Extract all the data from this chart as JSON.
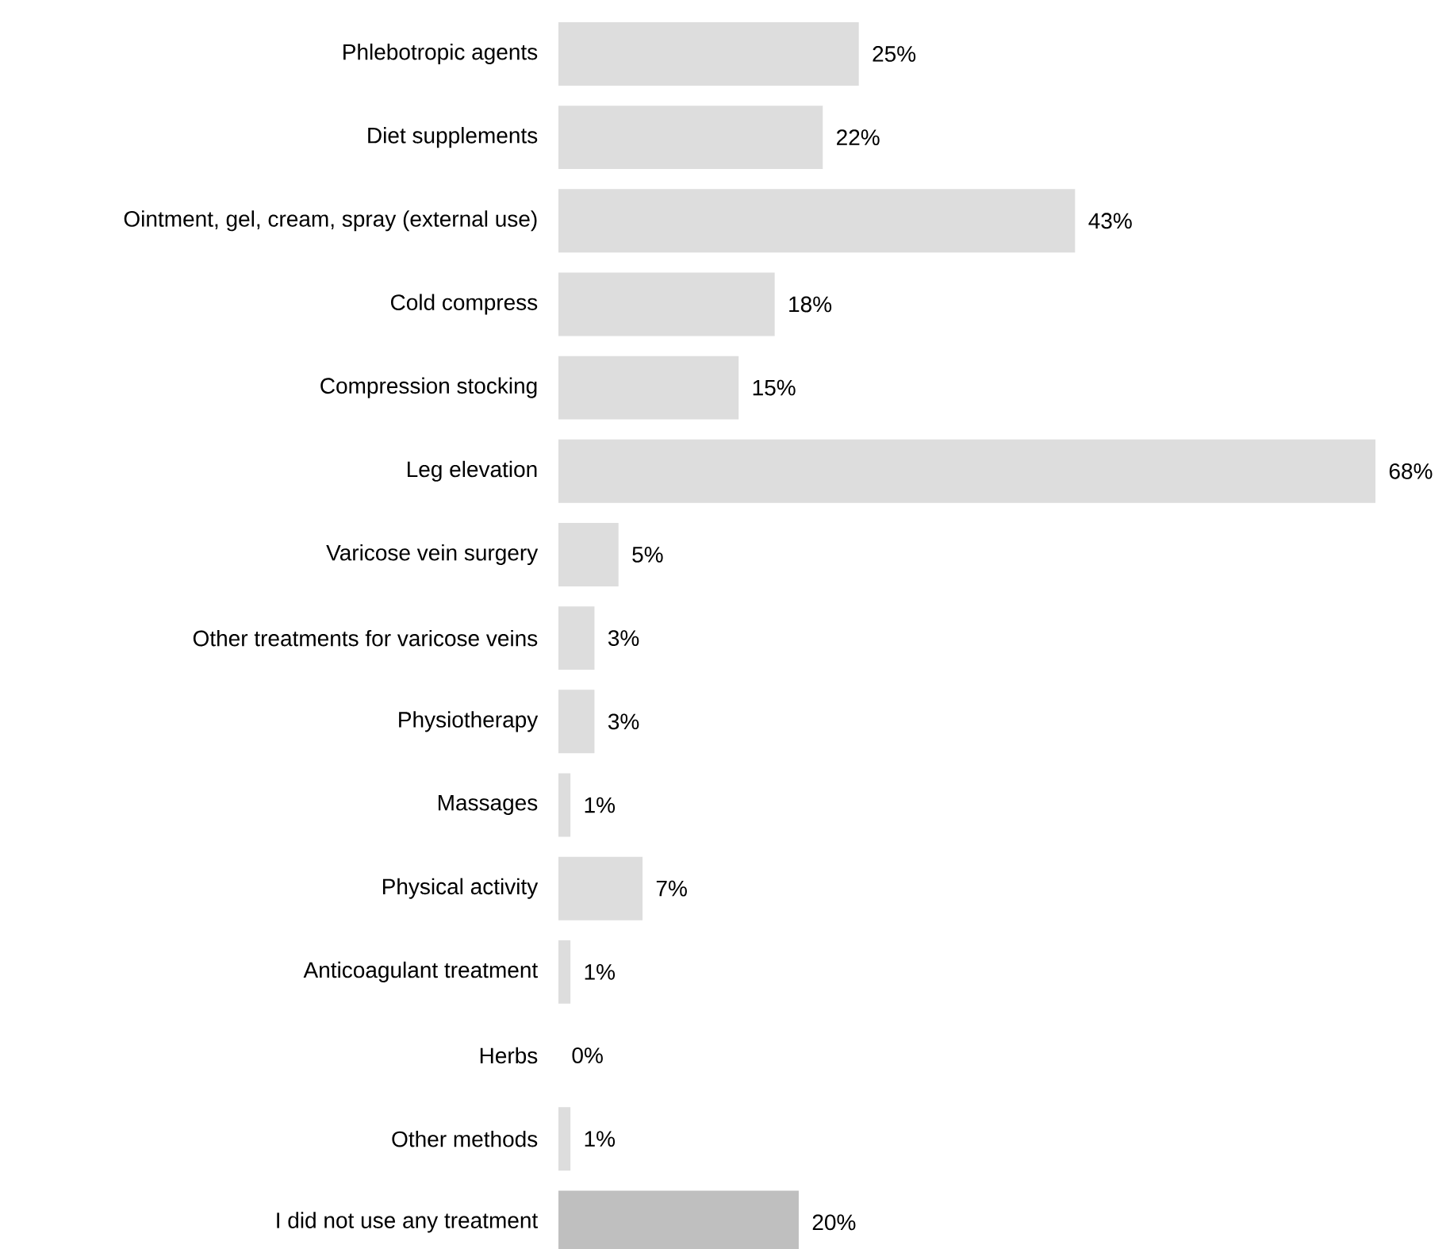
{
  "chart_data": {
    "type": "bar",
    "orientation": "horizontal",
    "categories": [
      "Phlebotropic agents",
      "Diet supplements",
      "Ointment, gel, cream, spray (external use)",
      "Cold compress",
      "Compression stocking",
      "Leg elevation",
      "Varicose vein surgery",
      "Other treatments for varicose veins",
      "Physiotherapy",
      "Massages",
      "Physical activity",
      "Anticoagulant treatment",
      "Herbs",
      "Other methods",
      "I did not use any treatment"
    ],
    "values": [
      25,
      22,
      43,
      18,
      15,
      68,
      5,
      3,
      3,
      1,
      7,
      1,
      0,
      1,
      20
    ],
    "value_labels": [
      "25%",
      "22%",
      "43%",
      "18%",
      "15%",
      "68%",
      "5%",
      "3%",
      "3%",
      "1%",
      "7%",
      "1%",
      "0%",
      "1%",
      "20%"
    ],
    "colors": [
      "#dddddd",
      "#dddddd",
      "#dddddd",
      "#dddddd",
      "#dddddd",
      "#dddddd",
      "#dddddd",
      "#dddddd",
      "#dddddd",
      "#dddddd",
      "#dddddd",
      "#dddddd",
      "#dddddd",
      "#dddddd",
      "#bfbfbf"
    ]
  }
}
